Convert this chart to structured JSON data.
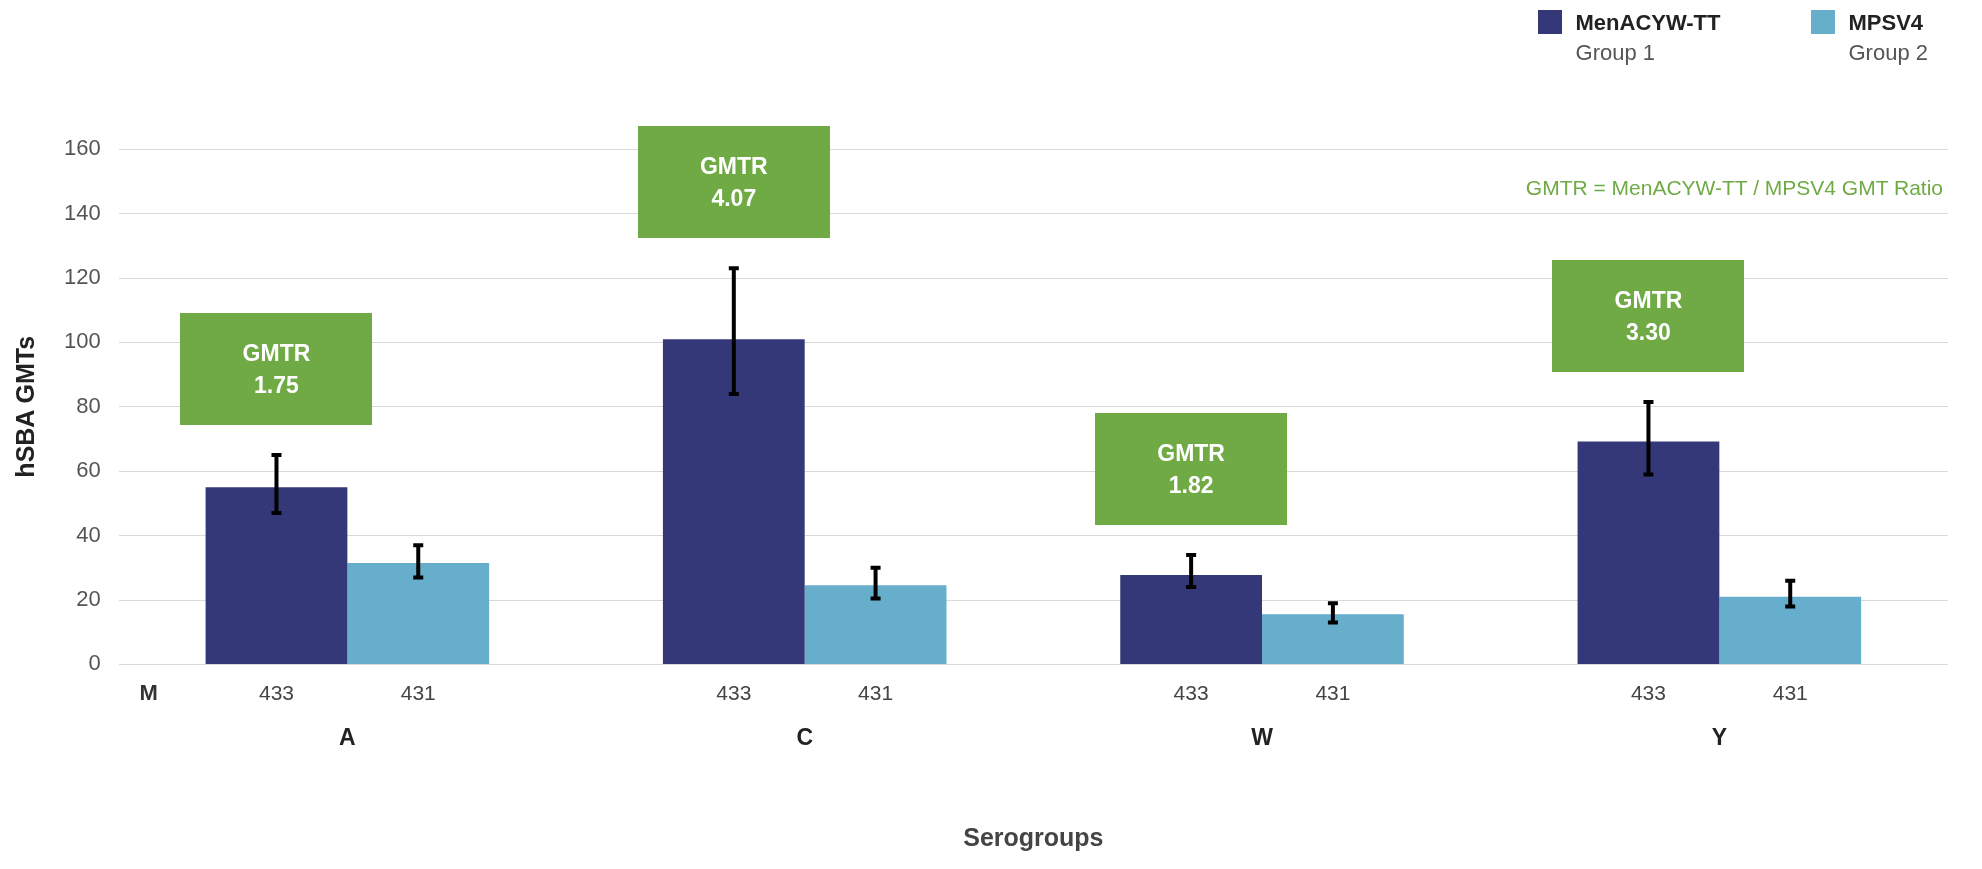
{
  "chart_data": {
    "type": "bar",
    "xlabel": "Serogroups",
    "ylabel": "hSBA GMTs",
    "categories": [
      "A",
      "C",
      "W",
      "Y"
    ],
    "series": [
      {
        "name": "MenACYW-TT\nGroup 1",
        "color": "#353878",
        "values": [
          55,
          101,
          27.8,
          69.2
        ],
        "errors": [
          [
            47,
            65
          ],
          [
            84,
            123
          ],
          [
            24,
            34
          ],
          [
            59,
            81.5
          ]
        ]
      },
      {
        "name": "MPSV4\nGroup 2",
        "color": "#67adcc",
        "values": [
          31.5,
          24.6,
          15.6,
          21
        ],
        "errors": [
          [
            27,
            37
          ],
          [
            20.5,
            30
          ],
          [
            13,
            19
          ],
          [
            18,
            26
          ]
        ]
      }
    ],
    "ylim": [
      0,
      160
    ],
    "yticks": [
      0,
      20,
      40,
      60,
      80,
      100,
      120,
      140,
      160
    ],
    "grid": "y",
    "legend": "top right",
    "annotations": [
      "M",
      "GMTR = MenACYW-TT / MPSV4 GMT Ratio",
      "433",
      "431",
      "433",
      "431",
      "433",
      "431",
      "433",
      "431",
      "GMTR\n1.75",
      "GMTR\n4.07",
      "GMTR\n1.82",
      "GMTR\n3.30"
    ]
  }
}
